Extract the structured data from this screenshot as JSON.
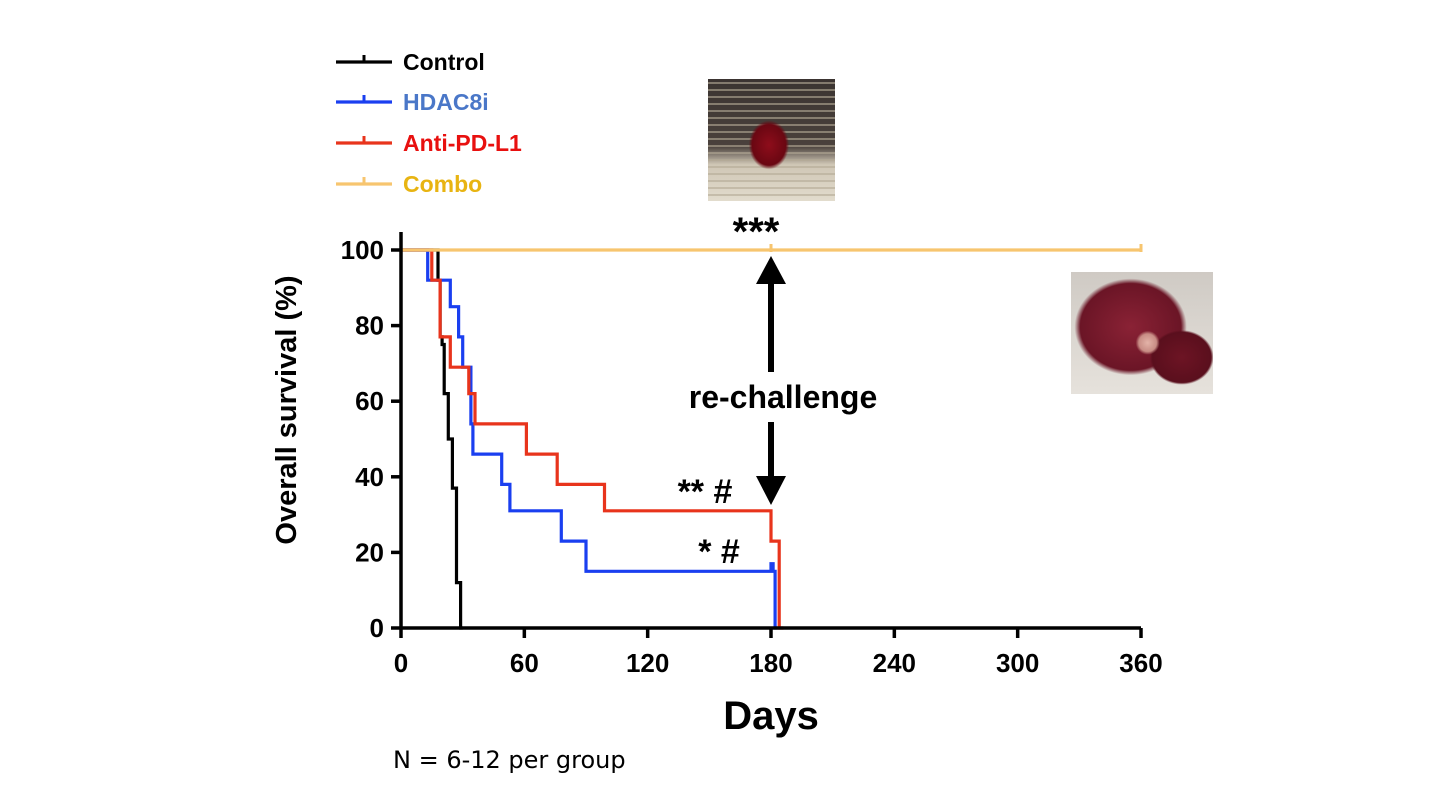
{
  "chart_data": {
    "type": "line",
    "title": "",
    "xlabel": "Days",
    "ylabel": "Overall survival (%)",
    "xlim": [
      0,
      360
    ],
    "ylim": [
      0,
      100
    ],
    "x_ticks": [
      0,
      60,
      120,
      180,
      240,
      300,
      360
    ],
    "y_ticks": [
      0,
      20,
      40,
      60,
      80,
      100
    ],
    "grid": false,
    "legend_position": "top-left",
    "series": [
      {
        "name": "Control",
        "color": "#000000",
        "points": [
          [
            0,
            100
          ],
          [
            18,
            100
          ],
          [
            18,
            92
          ],
          [
            19,
            92
          ],
          [
            19,
            77
          ],
          [
            20,
            77
          ],
          [
            20,
            75
          ],
          [
            21,
            75
          ],
          [
            21,
            62
          ],
          [
            23,
            62
          ],
          [
            23,
            50
          ],
          [
            25,
            50
          ],
          [
            25,
            37
          ],
          [
            27,
            37
          ],
          [
            27,
            12
          ],
          [
            29,
            12
          ],
          [
            29,
            0
          ],
          [
            30,
            0
          ]
        ],
        "censored": []
      },
      {
        "name": "HDAC8i",
        "color": "#1a3ff0",
        "points": [
          [
            0,
            100
          ],
          [
            13,
            100
          ],
          [
            13,
            92
          ],
          [
            24,
            92
          ],
          [
            24,
            85
          ],
          [
            28,
            85
          ],
          [
            28,
            77
          ],
          [
            30,
            77
          ],
          [
            30,
            69
          ],
          [
            34,
            69
          ],
          [
            34,
            54
          ],
          [
            35,
            54
          ],
          [
            35,
            46
          ],
          [
            49,
            46
          ],
          [
            49,
            38
          ],
          [
            53,
            38
          ],
          [
            53,
            31
          ],
          [
            78,
            31
          ],
          [
            78,
            23
          ],
          [
            90,
            23
          ],
          [
            90,
            15
          ],
          [
            180,
            15
          ],
          [
            180,
            17
          ],
          [
            181,
            17
          ],
          [
            181,
            15
          ],
          [
            182,
            15
          ],
          [
            182,
            0
          ],
          [
            183,
            0
          ]
        ],
        "censored": []
      },
      {
        "name": "Anti-PD-L1",
        "color": "#e8341c",
        "points": [
          [
            0,
            100
          ],
          [
            15,
            100
          ],
          [
            15,
            92
          ],
          [
            19,
            92
          ],
          [
            19,
            77
          ],
          [
            24,
            77
          ],
          [
            24,
            69
          ],
          [
            33,
            69
          ],
          [
            33,
            62
          ],
          [
            36,
            62
          ],
          [
            36,
            54
          ],
          [
            61,
            54
          ],
          [
            61,
            46
          ],
          [
            76,
            46
          ],
          [
            76,
            38
          ],
          [
            99,
            38
          ],
          [
            99,
            31
          ],
          [
            180,
            31
          ],
          [
            180,
            23
          ],
          [
            184,
            23
          ],
          [
            184,
            0
          ],
          [
            186,
            0
          ]
        ],
        "censored": []
      },
      {
        "name": "Combo",
        "color": "#f7c56f",
        "points": [
          [
            0,
            100
          ],
          [
            360,
            100
          ]
        ],
        "censored": [
          180,
          360
        ]
      }
    ],
    "annotations": {
      "combo_sig": "***",
      "pdl1_sig": "** #",
      "hdac_sig": "* #",
      "rechallenge": "re-challenge"
    },
    "note": "N = 6-12 per group",
    "legend_label_colors": {
      "Control": "#000000",
      "HDAC8i": "#4a77c8",
      "Anti-PD-L1": "#e8100f",
      "Combo": "#e8b412"
    }
  },
  "images": [
    {
      "name": "tumor-injection-photo",
      "icon": "subcutaneous-tumor-photo"
    },
    {
      "name": "liver-tumor-photo",
      "icon": "liver-metastasis-photo"
    }
  ]
}
